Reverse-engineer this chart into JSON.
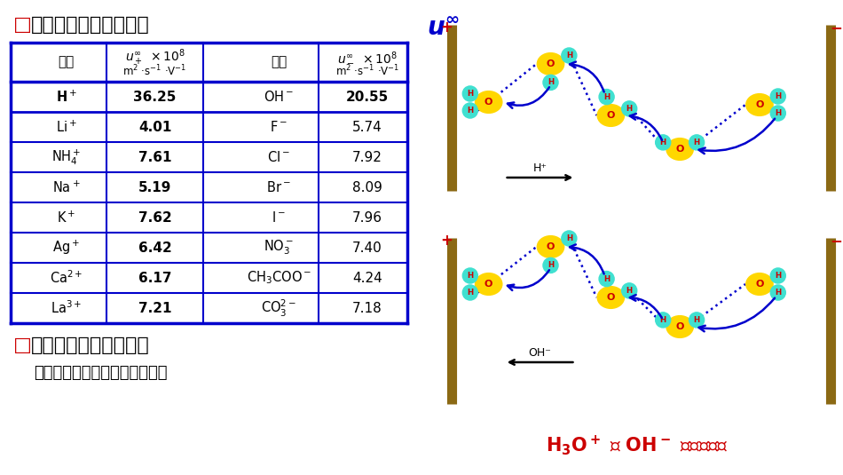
{
  "bg_color": "#ffffff",
  "title1": "■无限稀释时的电迁移率",
  "title2": "■离子电迁移率影响因素",
  "subtitle2": "离子浓度、其它离子种类、温度",
  "col_headers": [
    "离子",
    "u₊∞ ×10⁸\nm²·s⁻¹·V⁻¹",
    "离子",
    "u₋∞ ×10⁸\nm²·s⁻¹·V⁻¹"
  ],
  "rows": [
    [
      "H⁺",
      "36.25",
      "OH⁻",
      "20.55"
    ],
    [
      "Li⁺",
      "4.01",
      "F⁻",
      "5.74"
    ],
    [
      "NH₄⁺",
      "7.61",
      "Cl⁻",
      "7.92"
    ],
    [
      "Na⁺",
      "5.19",
      "Br⁻",
      "8.09"
    ],
    [
      "K⁺",
      "7.62",
      "I⁻",
      "7.96"
    ],
    [
      "Ag⁺",
      "6.42",
      "NO₃⁻",
      "7.40"
    ],
    [
      "Ca²⁺",
      "6.17",
      "CH₃COO⁻",
      "4.24"
    ],
    [
      "La³⁺",
      "7.21",
      "CO₃²⁻",
      "7.18"
    ]
  ],
  "u_inf_label": "u∞",
  "bottom_label": "H₃O⁺ 与 OH⁻ 的导电机理",
  "red_color": "#cc0000",
  "blue_color": "#0000cc",
  "dark_blue": "#000080",
  "title_red": "#cc0000",
  "h3o_label": "H₃O⁺ 与 OH⁻ 的导电机理"
}
